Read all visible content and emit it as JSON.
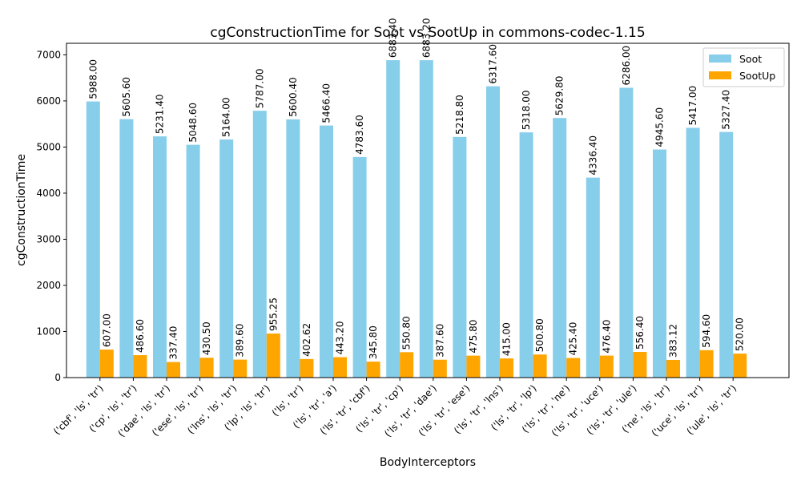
{
  "chart_data": {
    "type": "bar",
    "title": "cgConstructionTime for Soot vs SootUp in commons-codec-1.15",
    "xlabel": "BodyInterceptors",
    "ylabel": "cgConstructionTime",
    "ylim": [
      0,
      7250
    ],
    "yticks": [
      0,
      1000,
      2000,
      3000,
      4000,
      5000,
      6000,
      7000
    ],
    "legend_position": "top-right",
    "grid": false,
    "categories": [
      "('cbf', 'ls', 'tr')",
      "('cp', 'ls', 'tr')",
      "('dae', 'ls', 'tr')",
      "('ese', 'ls', 'tr')",
      "('lns', 'ls', 'tr')",
      "('lp', 'ls', 'tr')",
      "('ls', 'tr')",
      "('ls', 'tr', 'a')",
      "('ls', 'tr', 'cbf')",
      "('ls', 'tr', 'cp')",
      "('ls', 'tr', 'dae')",
      "('ls', 'tr', 'ese')",
      "('ls', 'tr', 'lns')",
      "('ls', 'tr', 'lp')",
      "('ls', 'tr', 'ne')",
      "('ls', 'tr', 'uce')",
      "('ls', 'tr', 'ule')",
      "('ne', 'ls', 'tr')",
      "('uce', 'ls', 'tr')",
      "('ule', 'ls', 'tr')"
    ],
    "series": [
      {
        "name": "Soot",
        "color": "#87ceeb",
        "values": [
          5988.0,
          5605.6,
          5231.4,
          5048.6,
          5164.0,
          5787.0,
          5600.4,
          5466.4,
          4783.6,
          6883.4,
          6883.2,
          5218.8,
          6317.6,
          5318.0,
          5629.8,
          4336.4,
          6286.0,
          4945.6,
          5417.0,
          5327.4
        ],
        "labels": [
          "5988.00",
          "5605.60",
          "5231.40",
          "5048.60",
          "5164.00",
          "5787.00",
          "5600.40",
          "5466.40",
          "4783.60",
          "6883.40",
          "6883.20",
          "5218.80",
          "6317.60",
          "5318.00",
          "5629.80",
          "4336.40",
          "6286.00",
          "4945.60",
          "5417.00",
          "5327.40"
        ]
      },
      {
        "name": "SootUp",
        "color": "#ffa500",
        "values": [
          607.0,
          486.6,
          337.4,
          430.5,
          389.6,
          955.25,
          402.62,
          443.2,
          345.8,
          550.8,
          387.6,
          475.8,
          415.0,
          500.8,
          425.4,
          476.4,
          556.4,
          383.12,
          594.6,
          520.0
        ],
        "labels": [
          "607.00",
          "486.60",
          "337.40",
          "430.50",
          "389.60",
          "955.25",
          "402.62",
          "443.20",
          "345.80",
          "550.80",
          "387.60",
          "475.80",
          "415.00",
          "500.80",
          "425.40",
          "476.40",
          "556.40",
          "383.12",
          "594.60",
          "520.00"
        ]
      }
    ]
  }
}
